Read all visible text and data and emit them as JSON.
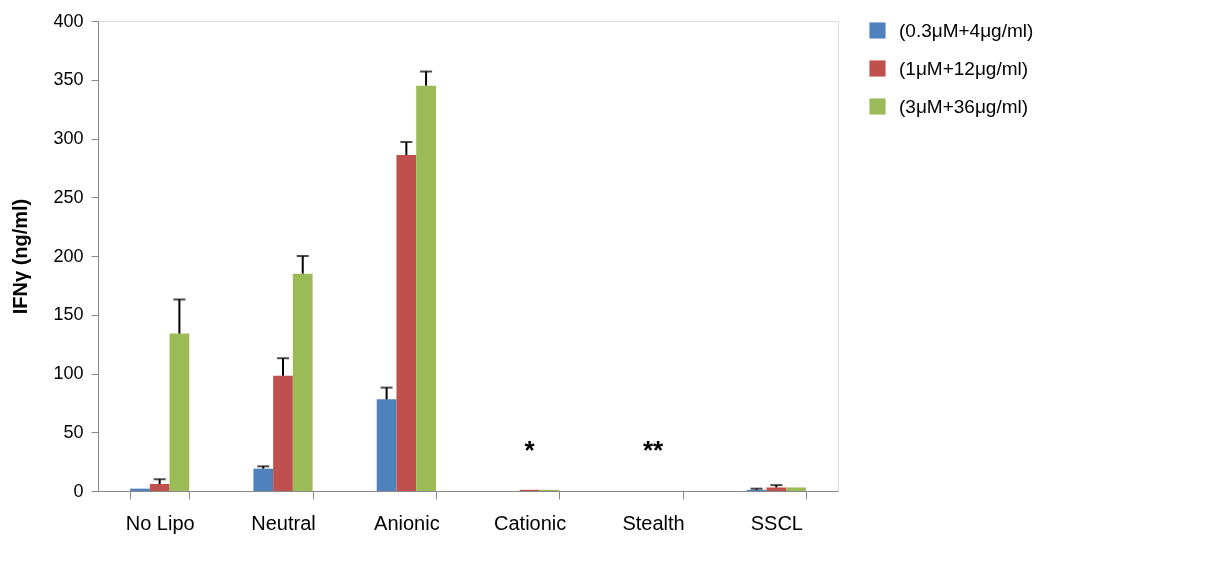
{
  "chart_data": {
    "type": "bar",
    "ylabel": "IFNγ (ng/ml)",
    "categories": [
      "No Lipo",
      "Neutral",
      "Anionic",
      "Cationic",
      "Stealth",
      "SSCL"
    ],
    "series": [
      {
        "name": "(0.3μM+4μg/ml)",
        "color": "#4f81bd",
        "values": [
          2,
          19,
          78,
          0,
          0,
          1
        ],
        "errors": [
          null,
          [
            19,
            21
          ],
          [
            78,
            88
          ],
          null,
          null,
          [
            1,
            2
          ]
        ]
      },
      {
        "name": "(1μM+12μg/ml)",
        "color": "#c0504d",
        "values": [
          6,
          98,
          286,
          1,
          0,
          3
        ],
        "errors": [
          [
            6,
            10
          ],
          [
            98,
            113
          ],
          [
            286,
            297
          ],
          null,
          null,
          [
            3,
            5
          ]
        ]
      },
      {
        "name": "(3μM+36μg/ml)",
        "color": "#9bbb59",
        "values": [
          134,
          185,
          345,
          1,
          0,
          3
        ],
        "errors": [
          [
            134,
            163
          ],
          [
            185,
            200
          ],
          [
            345,
            357
          ],
          null,
          null,
          null
        ]
      }
    ],
    "ylim": [
      0,
      400
    ],
    "yticks": [
      0,
      50,
      100,
      150,
      200,
      250,
      300,
      350,
      400
    ],
    "annotations": [
      "*",
      "**"
    ],
    "grid": false,
    "legend": "right"
  }
}
